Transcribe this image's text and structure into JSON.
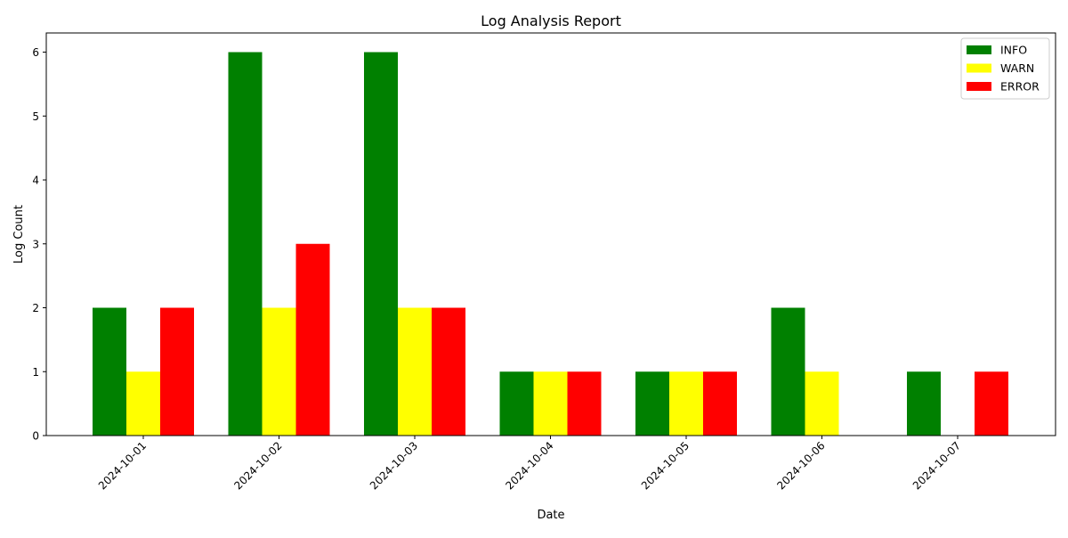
{
  "chart_data": {
    "type": "bar",
    "title": "Log Analysis Report",
    "xlabel": "Date",
    "ylabel": "Log Count",
    "categories": [
      "2024-10-01",
      "2024-10-02",
      "2024-10-03",
      "2024-10-04",
      "2024-10-05",
      "2024-10-06",
      "2024-10-07"
    ],
    "series": [
      {
        "name": "INFO",
        "color": "#008000",
        "values": [
          2,
          6,
          6,
          1,
          1,
          2,
          1
        ]
      },
      {
        "name": "WARN",
        "color": "#ffff00",
        "values": [
          1,
          2,
          2,
          1,
          1,
          1,
          0
        ]
      },
      {
        "name": "ERROR",
        "color": "#ff0000",
        "values": [
          2,
          3,
          2,
          1,
          1,
          0,
          1
        ]
      }
    ],
    "ylim": [
      0,
      6.3
    ],
    "yticks": [
      0,
      1,
      2,
      3,
      4,
      5,
      6
    ],
    "grid": false,
    "legend": "top-right",
    "xtick_rotation": 45
  }
}
